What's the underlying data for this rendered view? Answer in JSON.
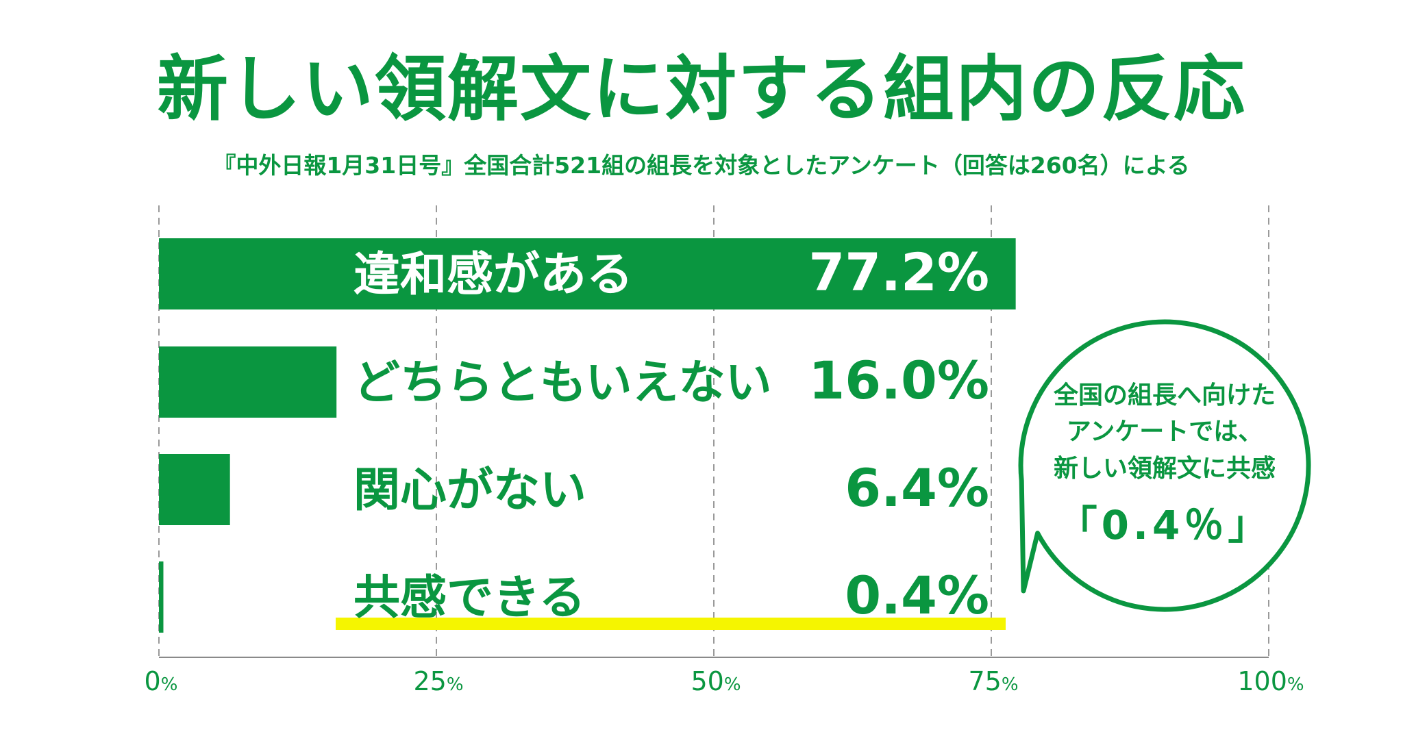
{
  "title": "新しい領解文に対する組内の反応",
  "subtitle": "『中外日報1月31日号』全国合計521組の組長を対象としたアンケート（回答は260名）による",
  "chart_data": {
    "type": "bar",
    "orientation": "horizontal",
    "categories": [
      "違和感がある",
      "どちらともいえない",
      "関心がない",
      "共感できる"
    ],
    "values": [
      77.2,
      16.0,
      6.4,
      0.4
    ],
    "value_labels": [
      "77.2%",
      "16.0%",
      "6.4%",
      "0.4%"
    ],
    "xlim": [
      0,
      100
    ],
    "x_ticks": [
      "0",
      "25",
      "50",
      "75",
      "100"
    ],
    "x_tick_unit": "%",
    "grid": true,
    "highlight_category": "共感できる",
    "colors": {
      "bar": "#0a9640",
      "text": "#0a9640",
      "label_on_bar": "#ffffff",
      "highlight": "#f5f500",
      "grid": "#9a9a9a"
    }
  },
  "callout": {
    "lines": [
      "全国の組長へ向けた",
      "アンケートでは、",
      "新しい領解文に共感"
    ],
    "emphasis": "「0.4％」"
  }
}
